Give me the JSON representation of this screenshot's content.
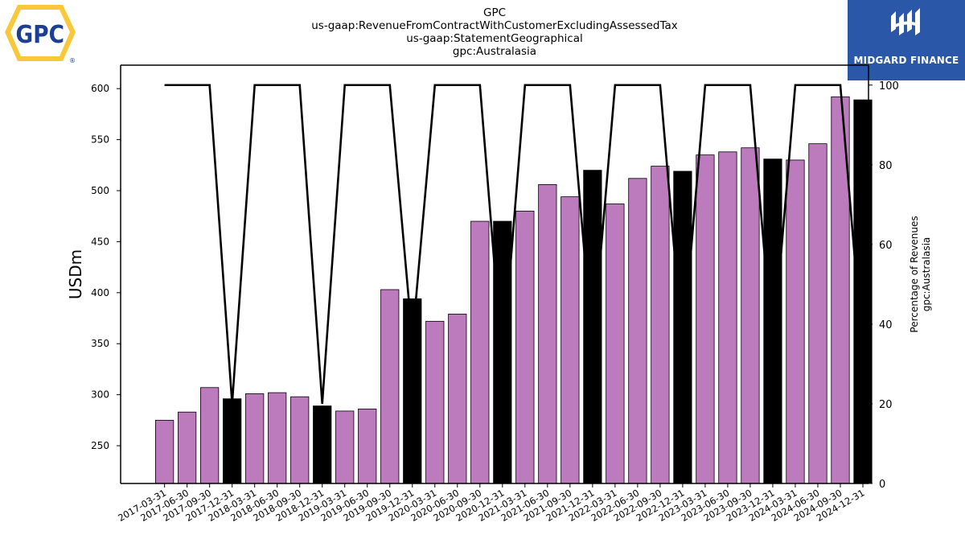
{
  "header": {
    "ticker": "GPC",
    "concept": "us-gaap:RevenueFromContractWithCustomerExcludingAssessedTax",
    "axis": "us-gaap:StatementGeographical",
    "member": "gpc:Australasia"
  },
  "logos": {
    "left_text": "GPC",
    "left_mark": "®",
    "right_text": "MIDGARD FINANCE"
  },
  "colors": {
    "bar_default": "#bb7bbd",
    "bar_q4": "#000000",
    "line": "#000000",
    "logo_gpc_yellow": "#f9c83a",
    "logo_gpc_blue": "#1c3f94",
    "logo_midgard_bg": "#2b57a8"
  },
  "chart_data": {
    "type": "bar",
    "title": "GPC\nus-gaap:RevenueFromContractWithCustomerExcludingAssessedTax\nus-gaap:StatementGeographical\ngpc:Australasia",
    "ylabel": "USDm",
    "y2label": "Percentage of Revenues\ngpc:Australasia",
    "ylim": [
      213,
      623
    ],
    "y2lim": [
      0,
      105
    ],
    "yticks": [
      250,
      300,
      350,
      400,
      450,
      500,
      550,
      600
    ],
    "y2ticks": [
      0,
      20,
      40,
      60,
      80,
      100
    ],
    "grid": false,
    "categories": [
      "2017-03-31",
      "2017-06-30",
      "2017-09-30",
      "2017-12-31",
      "2018-03-31",
      "2018-06-30",
      "2018-09-30",
      "2018-12-31",
      "2019-03-31",
      "2019-06-30",
      "2019-09-30",
      "2019-12-31",
      "2020-03-31",
      "2020-06-30",
      "2020-09-30",
      "2020-12-31",
      "2021-03-31",
      "2021-06-30",
      "2021-09-30",
      "2021-12-31",
      "2022-03-31",
      "2022-06-30",
      "2022-09-30",
      "2022-12-31",
      "2023-03-31",
      "2023-06-30",
      "2023-09-30",
      "2023-12-31",
      "2024-03-31",
      "2024-06-30",
      "2024-09-30",
      "2024-12-31"
    ],
    "series": [
      {
        "type": "bar",
        "axis": "left",
        "values": [
          275,
          283,
          307,
          296,
          301,
          302,
          298,
          289,
          284,
          286,
          403,
          394,
          372,
          379,
          470,
          470,
          480,
          506,
          494,
          520,
          487,
          512,
          524,
          519,
          535,
          538,
          542,
          531,
          530,
          546,
          592,
          589
        ],
        "highlight_q4": true
      },
      {
        "type": "line",
        "axis": "right",
        "values": [
          100,
          100,
          100,
          20,
          100,
          100,
          100,
          20,
          100,
          100,
          100,
          36,
          100,
          100,
          100,
          30,
          100,
          100,
          100,
          34,
          100,
          100,
          100,
          34,
          100,
          100,
          100,
          33,
          100,
          100,
          100,
          32
        ]
      }
    ]
  }
}
